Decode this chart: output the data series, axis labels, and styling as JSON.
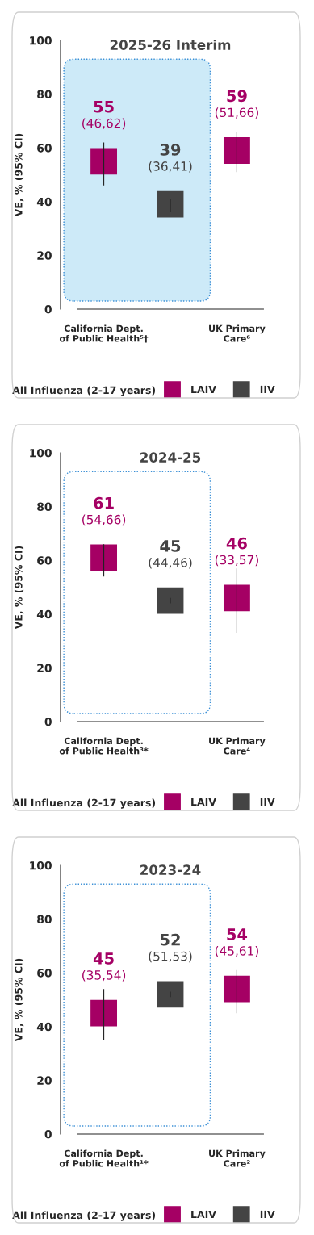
{
  "chart_data": [
    {
      "type": "scatter",
      "title": "2025-26 Interim",
      "ylabel": "VE, % (95% CI)",
      "legend_title": "All Influenza (2-17 years)",
      "legend": "bottom",
      "marker": "square",
      "categories": [
        "California Dept.\nof Public Health⁵†",
        null,
        "UK Primary\nCare⁶"
      ],
      "series": [
        {
          "name": "LAIV",
          "color": "#a50064",
          "values": [
            55,
            null,
            59
          ],
          "errors": [
            [
              46,
              62
            ],
            null,
            [
              51,
              66
            ]
          ],
          "value_labels": [
            "55\n(46,62)",
            null,
            "59\n(51,66)"
          ]
        },
        {
          "name": "IIV",
          "color": "#444444",
          "values": [
            null,
            39,
            null
          ],
          "errors": [
            null,
            [
              36,
              41
            ],
            null
          ],
          "value_labels": [
            null,
            "39\n(36,41)",
            null
          ]
        }
      ],
      "bands": [
        {
          "axis": "y",
          "from": 3,
          "to": 93,
          "color": "#cdeaf8"
        }
      ],
      "ylim": [
        0,
        100
      ],
      "yticks": [
        0,
        20,
        40,
        60,
        80,
        100
      ],
      "grid": false
    },
    {
      "type": "scatter",
      "title": "2024-25",
      "ylabel": "VE, % (95% CI)",
      "legend_title": "All Influenza (2-17 years)",
      "legend": "bottom",
      "marker": "square",
      "categories": [
        "California Dept.\nof Public Health³*",
        null,
        "UK Primary\nCare⁴"
      ],
      "series": [
        {
          "name": "LAIV",
          "color": "#a50064",
          "values": [
            61,
            null,
            46
          ],
          "errors": [
            [
              54,
              66
            ],
            null,
            [
              33,
              57
            ]
          ],
          "value_labels": [
            "61\n(54,66)",
            null,
            "46\n(33,57)"
          ]
        },
        {
          "name": "IIV",
          "color": "#444444",
          "values": [
            null,
            45,
            null
          ],
          "errors": [
            null,
            [
              44,
              46
            ],
            null
          ],
          "value_labels": [
            null,
            "45\n(44,46)",
            null
          ]
        }
      ],
      "ylim": [
        0,
        100
      ],
      "yticks": [
        0,
        20,
        40,
        60,
        80,
        100
      ],
      "grid": false
    },
    {
      "type": "scatter",
      "title": "2023-24",
      "ylabel": "VE, % (95% CI)",
      "legend_title": "All Influenza (2-17 years)",
      "legend": "bottom",
      "marker": "square",
      "categories": [
        "California Dept.\nof Public Health¹*",
        null,
        "UK Primary\nCare²"
      ],
      "series": [
        {
          "name": "LAIV",
          "color": "#a50064",
          "values": [
            45,
            null,
            54
          ],
          "errors": [
            [
              35,
              54
            ],
            null,
            [
              45,
              61
            ]
          ],
          "value_labels": [
            "45\n(35,54)",
            null,
            "54\n(45,61)"
          ]
        },
        {
          "name": "IIV",
          "color": "#444444",
          "values": [
            null,
            52,
            null
          ],
          "errors": [
            null,
            [
              51,
              53
            ],
            null
          ],
          "value_labels": [
            null,
            "52\n(51,53)",
            null
          ]
        }
      ],
      "ylim": [
        0,
        100
      ],
      "yticks": [
        0,
        20,
        40,
        60,
        80,
        100
      ],
      "grid": false
    }
  ]
}
